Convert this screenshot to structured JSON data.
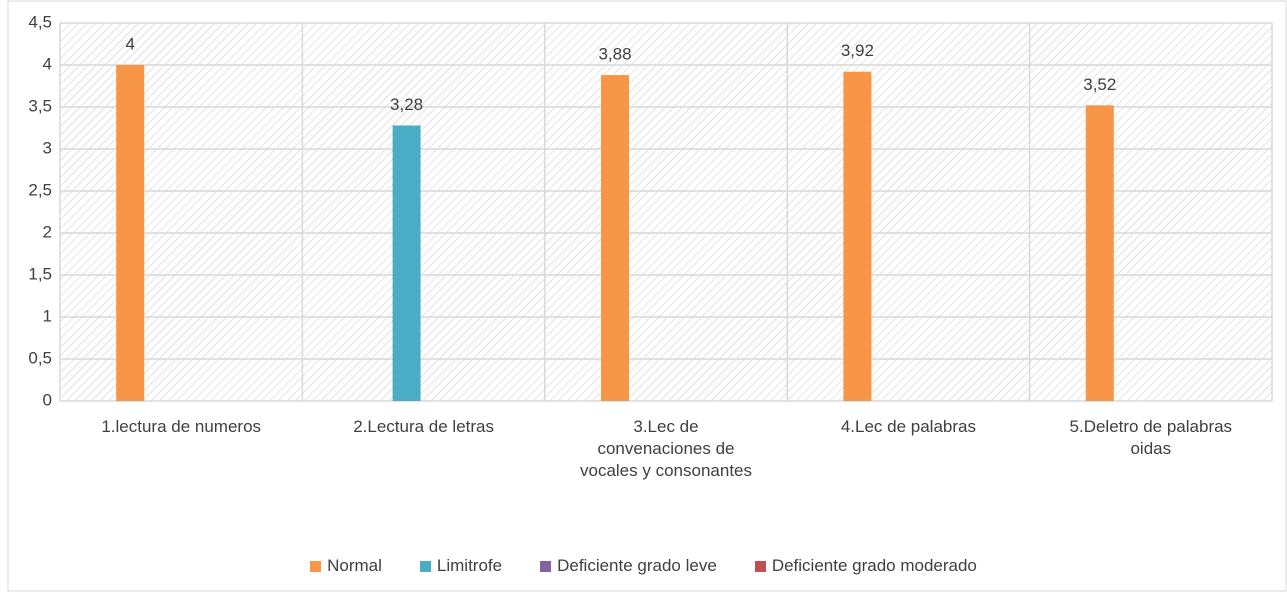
{
  "chart_data": {
    "type": "bar",
    "categories": [
      "1.lectura de numeros",
      "2.Lectura de letras",
      "3.Lec de convenaciones de vocales y consonantes",
      "4.Lec de palabras",
      "5.Deletro de palabras oidas"
    ],
    "series": [
      {
        "name": "Normal",
        "color": "#f79646",
        "values": [
          4,
          null,
          3.88,
          3.92,
          3.52
        ],
        "value_labels": [
          "4",
          null,
          "3,88",
          "3,92",
          "3,52"
        ]
      },
      {
        "name": "Limitrofe",
        "color": "#4bacc6",
        "values": [
          null,
          3.28,
          null,
          null,
          null
        ],
        "value_labels": [
          null,
          "3,28",
          null,
          null,
          null
        ]
      },
      {
        "name": "Deficiente grado leve",
        "color": "#8064a2",
        "values": [
          null,
          null,
          null,
          null,
          null
        ]
      },
      {
        "name": "Deficiente grado moderado",
        "color": "#c0504d",
        "values": [
          null,
          null,
          null,
          null,
          null
        ]
      }
    ],
    "ylim": [
      0,
      4.5
    ],
    "yticks": [
      0,
      {
        "value": 0.5,
        "label": "0,5"
      },
      1,
      {
        "value": 1.5,
        "label": "1,5"
      },
      2,
      {
        "value": 2.5,
        "label": "2,5"
      },
      3,
      {
        "value": 3.5,
        "label": "3,5"
      },
      4,
      {
        "value": 4.5,
        "label": "4,5"
      }
    ],
    "grid": true,
    "legend": "bottom"
  }
}
